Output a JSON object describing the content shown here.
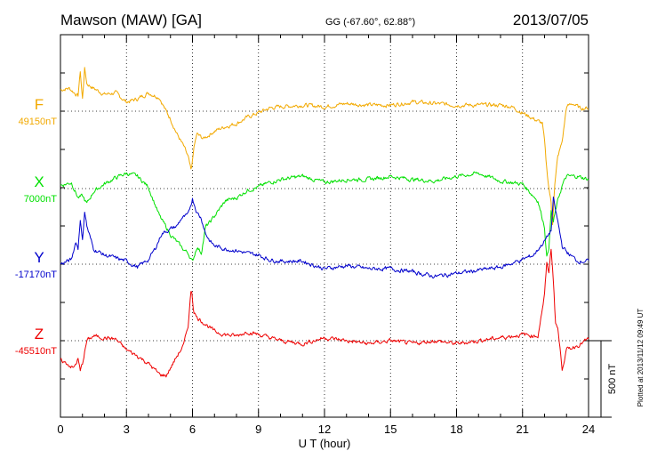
{
  "header": {
    "station": "Mawson (MAW)  [GA]",
    "coords": "GG (-67.60°,  62.88°)",
    "date": "2013/07/05"
  },
  "footer": {
    "plotted": "Plotted at 2013/11/12 09:49 UT"
  },
  "scale_bar": {
    "label": "500 nT"
  },
  "colors": {
    "F": "#f2a900",
    "X": "#00e000",
    "Y": "#0000cc",
    "Z": "#ee0000",
    "axis": "#000000",
    "grid": "#000000"
  },
  "chart_data": {
    "type": "line",
    "title": "Mawson (MAW)  [GA]",
    "xlabel": "U T (hour)",
    "ylabel": "",
    "xlim": [
      0,
      24
    ],
    "xticks": [
      0,
      3,
      6,
      9,
      12,
      15,
      18,
      21,
      24
    ],
    "grid": true,
    "scale_nT_per_bar": 500,
    "series": [
      {
        "name": "F",
        "label": "F",
        "baseline_text": "49150nT",
        "baseline_nT": 49150,
        "x": [
          0,
          0.4,
          0.8,
          0.9,
          1.0,
          1.1,
          1.2,
          1.5,
          2.0,
          2.5,
          3.0,
          3.5,
          4.0,
          4.5,
          4.8,
          5.0,
          5.3,
          5.6,
          5.8,
          5.95,
          6.05,
          6.2,
          6.5,
          6.8,
          7.0,
          7.5,
          8.0,
          8.5,
          9.0,
          9.5,
          10.0,
          11.0,
          12.0,
          13.0,
          14.0,
          15.0,
          16.0,
          17.0,
          18.0,
          19.0,
          20.0,
          20.5,
          21.0,
          21.5,
          21.9,
          22.0,
          22.1,
          22.2,
          22.3,
          22.35,
          22.45,
          22.6,
          22.8,
          23.0,
          23.3,
          23.6,
          24.0
        ],
        "y": [
          140,
          150,
          100,
          260,
          80,
          280,
          180,
          150,
          110,
          120,
          60,
          80,
          120,
          90,
          0,
          -50,
          -150,
          -230,
          -300,
          -400,
          -250,
          -150,
          -180,
          -150,
          -130,
          -100,
          -80,
          -40,
          -10,
          20,
          30,
          40,
          30,
          50,
          40,
          40,
          60,
          50,
          40,
          40,
          40,
          30,
          -10,
          -50,
          -80,
          -200,
          -380,
          -500,
          -600,
          -780,
          -500,
          -300,
          -200,
          30,
          50,
          20,
          20
        ]
      },
      {
        "name": "X",
        "label": "X",
        "baseline_text": "7000nT",
        "baseline_nT": 7000,
        "x": [
          0,
          0.5,
          0.8,
          1.0,
          1.2,
          1.5,
          2.0,
          2.5,
          3.0,
          3.5,
          4.0,
          4.5,
          5.0,
          5.3,
          5.6,
          5.8,
          6.0,
          6.2,
          6.4,
          6.6,
          6.8,
          7.0,
          7.5,
          8.0,
          8.5,
          9.0,
          9.5,
          10.0,
          11.0,
          12.0,
          13.0,
          14.0,
          15.0,
          16.0,
          17.0,
          18.0,
          19.0,
          20.0,
          21.0,
          21.7,
          22.0,
          22.1,
          22.2,
          22.3,
          22.4,
          22.6,
          22.8,
          23.0,
          23.5,
          24.0
        ],
        "y": [
          20,
          40,
          -60,
          -50,
          -100,
          -20,
          30,
          70,
          100,
          80,
          10,
          -180,
          -300,
          -350,
          -400,
          -420,
          -480,
          -380,
          -420,
          -250,
          -220,
          -180,
          -80,
          -60,
          -10,
          10,
          40,
          60,
          80,
          40,
          60,
          60,
          80,
          60,
          50,
          80,
          100,
          50,
          30,
          -80,
          -250,
          -450,
          -380,
          -150,
          -220,
          -80,
          20,
          80,
          80,
          60
        ]
      },
      {
        "name": "Y",
        "label": "Y",
        "baseline_text": "-17170nT",
        "baseline_nT": -17170,
        "x": [
          0,
          0.5,
          0.7,
          0.8,
          0.9,
          1.0,
          1.1,
          1.2,
          1.5,
          2.0,
          2.5,
          3.0,
          3.5,
          4.0,
          4.3,
          4.6,
          5.0,
          5.3,
          5.5,
          5.8,
          6.0,
          6.2,
          6.4,
          6.6,
          6.8,
          7.0,
          7.5,
          8.0,
          8.5,
          9.0,
          9.5,
          10.0,
          11.0,
          12.0,
          13.0,
          14.0,
          15.0,
          16.0,
          17.0,
          18.0,
          19.0,
          20.0,
          21.0,
          21.5,
          22.0,
          22.3,
          22.4,
          22.5,
          22.6,
          22.7,
          22.8,
          23.0,
          23.5,
          24.0
        ],
        "y": [
          0,
          30,
          150,
          100,
          300,
          150,
          350,
          250,
          100,
          60,
          40,
          20,
          -20,
          30,
          100,
          200,
          230,
          250,
          300,
          320,
          430,
          340,
          300,
          200,
          150,
          120,
          100,
          90,
          70,
          60,
          30,
          20,
          20,
          -30,
          -10,
          -30,
          -30,
          -50,
          -80,
          -60,
          -40,
          -20,
          30,
          60,
          150,
          220,
          430,
          350,
          280,
          200,
          120,
          80,
          20,
          20
        ]
      },
      {
        "name": "Z",
        "label": "Z",
        "baseline_text": "-45510nT",
        "baseline_nT": -45510,
        "x": [
          0,
          0.3,
          0.6,
          0.8,
          0.9,
          1.0,
          1.2,
          1.5,
          2.0,
          2.5,
          3.0,
          3.5,
          4.0,
          4.5,
          4.8,
          5.0,
          5.3,
          5.6,
          5.8,
          5.95,
          6.05,
          6.2,
          6.5,
          7.0,
          7.5,
          8.0,
          8.5,
          9.0,
          9.5,
          10.0,
          11.0,
          12.0,
          13.0,
          14.0,
          15.0,
          16.0,
          17.0,
          18.0,
          19.0,
          20.0,
          21.0,
          21.7,
          22.0,
          22.1,
          22.2,
          22.3,
          22.4,
          22.5,
          22.6,
          22.8,
          23.0,
          23.5,
          24.0
        ],
        "y": [
          -130,
          -150,
          -180,
          -120,
          -200,
          -150,
          0,
          30,
          20,
          10,
          -60,
          -100,
          -150,
          -220,
          -230,
          -180,
          -100,
          -30,
          100,
          350,
          200,
          150,
          120,
          60,
          40,
          30,
          60,
          40,
          20,
          0,
          -20,
          20,
          0,
          -20,
          0,
          -20,
          0,
          -20,
          0,
          20,
          40,
          30,
          300,
          500,
          450,
          600,
          400,
          120,
          80,
          -180,
          -60,
          -30,
          10
        ]
      }
    ]
  }
}
